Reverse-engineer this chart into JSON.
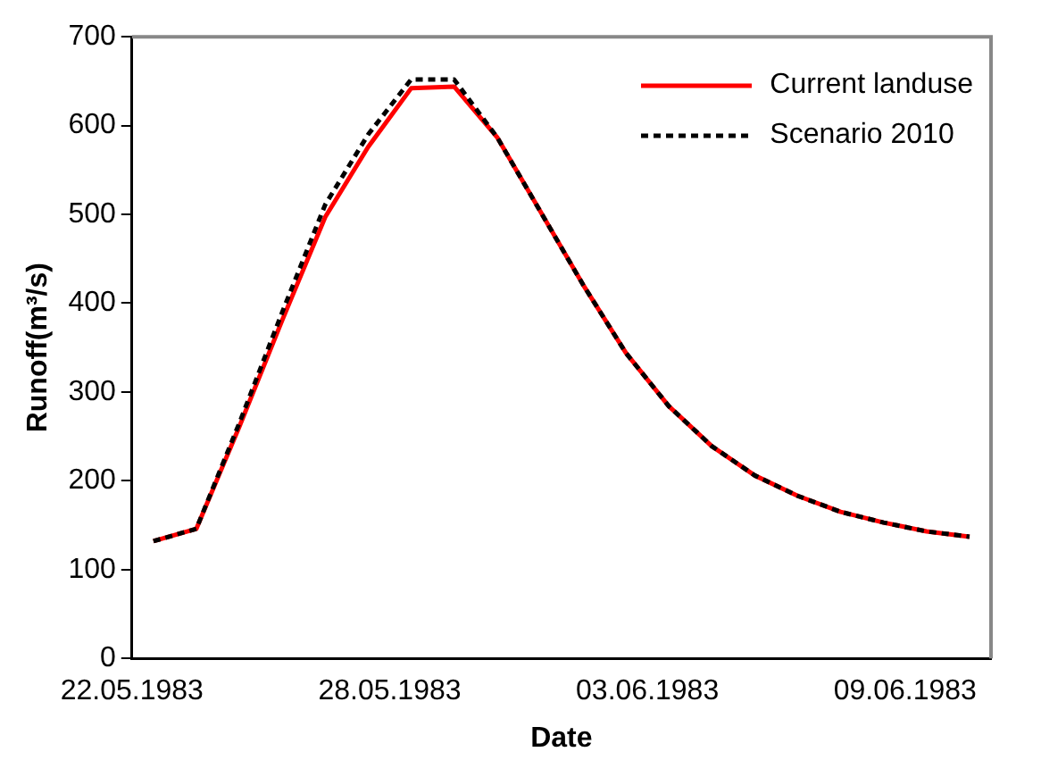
{
  "chart_data": {
    "type": "line",
    "xlabel": "Date",
    "ylabel": "Runoff(m³/s)",
    "x": [
      "1983-05-22T12:00",
      "1983-05-23T12:00",
      "1983-05-24T12:00",
      "1983-05-25T12:00",
      "1983-05-26T12:00",
      "1983-05-27T12:00",
      "1983-05-28T12:00",
      "1983-05-29T12:00",
      "1983-05-30T12:00",
      "1983-05-31T12:00",
      "1983-06-01T12:00",
      "1983-06-02T12:00",
      "1983-06-03T12:00",
      "1983-06-04T12:00",
      "1983-06-05T12:00",
      "1983-06-06T12:00",
      "1983-06-07T12:00",
      "1983-06-08T12:00",
      "1983-06-09T12:00",
      "1983-06-10T12:00"
    ],
    "series": [
      {
        "name": "Current landuse",
        "color": "#ff0000",
        "line_style": "solid",
        "values": [
          132,
          146,
          261,
          381,
          497,
          576,
          642,
          644,
          587,
          504,
          421,
          344,
          284,
          239,
          206,
          183,
          165,
          153,
          143,
          137
        ]
      },
      {
        "name": "Scenario 2010",
        "color": "#000000",
        "line_style": "dashed",
        "values": [
          132,
          146,
          265,
          390,
          511,
          590,
          652,
          652,
          587,
          504,
          421,
          344,
          284,
          239,
          206,
          183,
          165,
          153,
          143,
          137
        ]
      }
    ],
    "xlim": [
      "1983-05-22",
      "1983-06-11"
    ],
    "xticks": [
      {
        "value": "1983-05-22",
        "label": "22.05.1983"
      },
      {
        "value": "1983-05-28",
        "label": "28.05.1983"
      },
      {
        "value": "1983-06-03",
        "label": "03.06.1983"
      },
      {
        "value": "1983-06-09",
        "label": "09.06.1983"
      }
    ],
    "ylim": [
      0,
      700
    ],
    "yticks": [
      0,
      100,
      200,
      300,
      400,
      500,
      600,
      700
    ],
    "grid": false,
    "legend": "top right",
    "marker": "none"
  }
}
